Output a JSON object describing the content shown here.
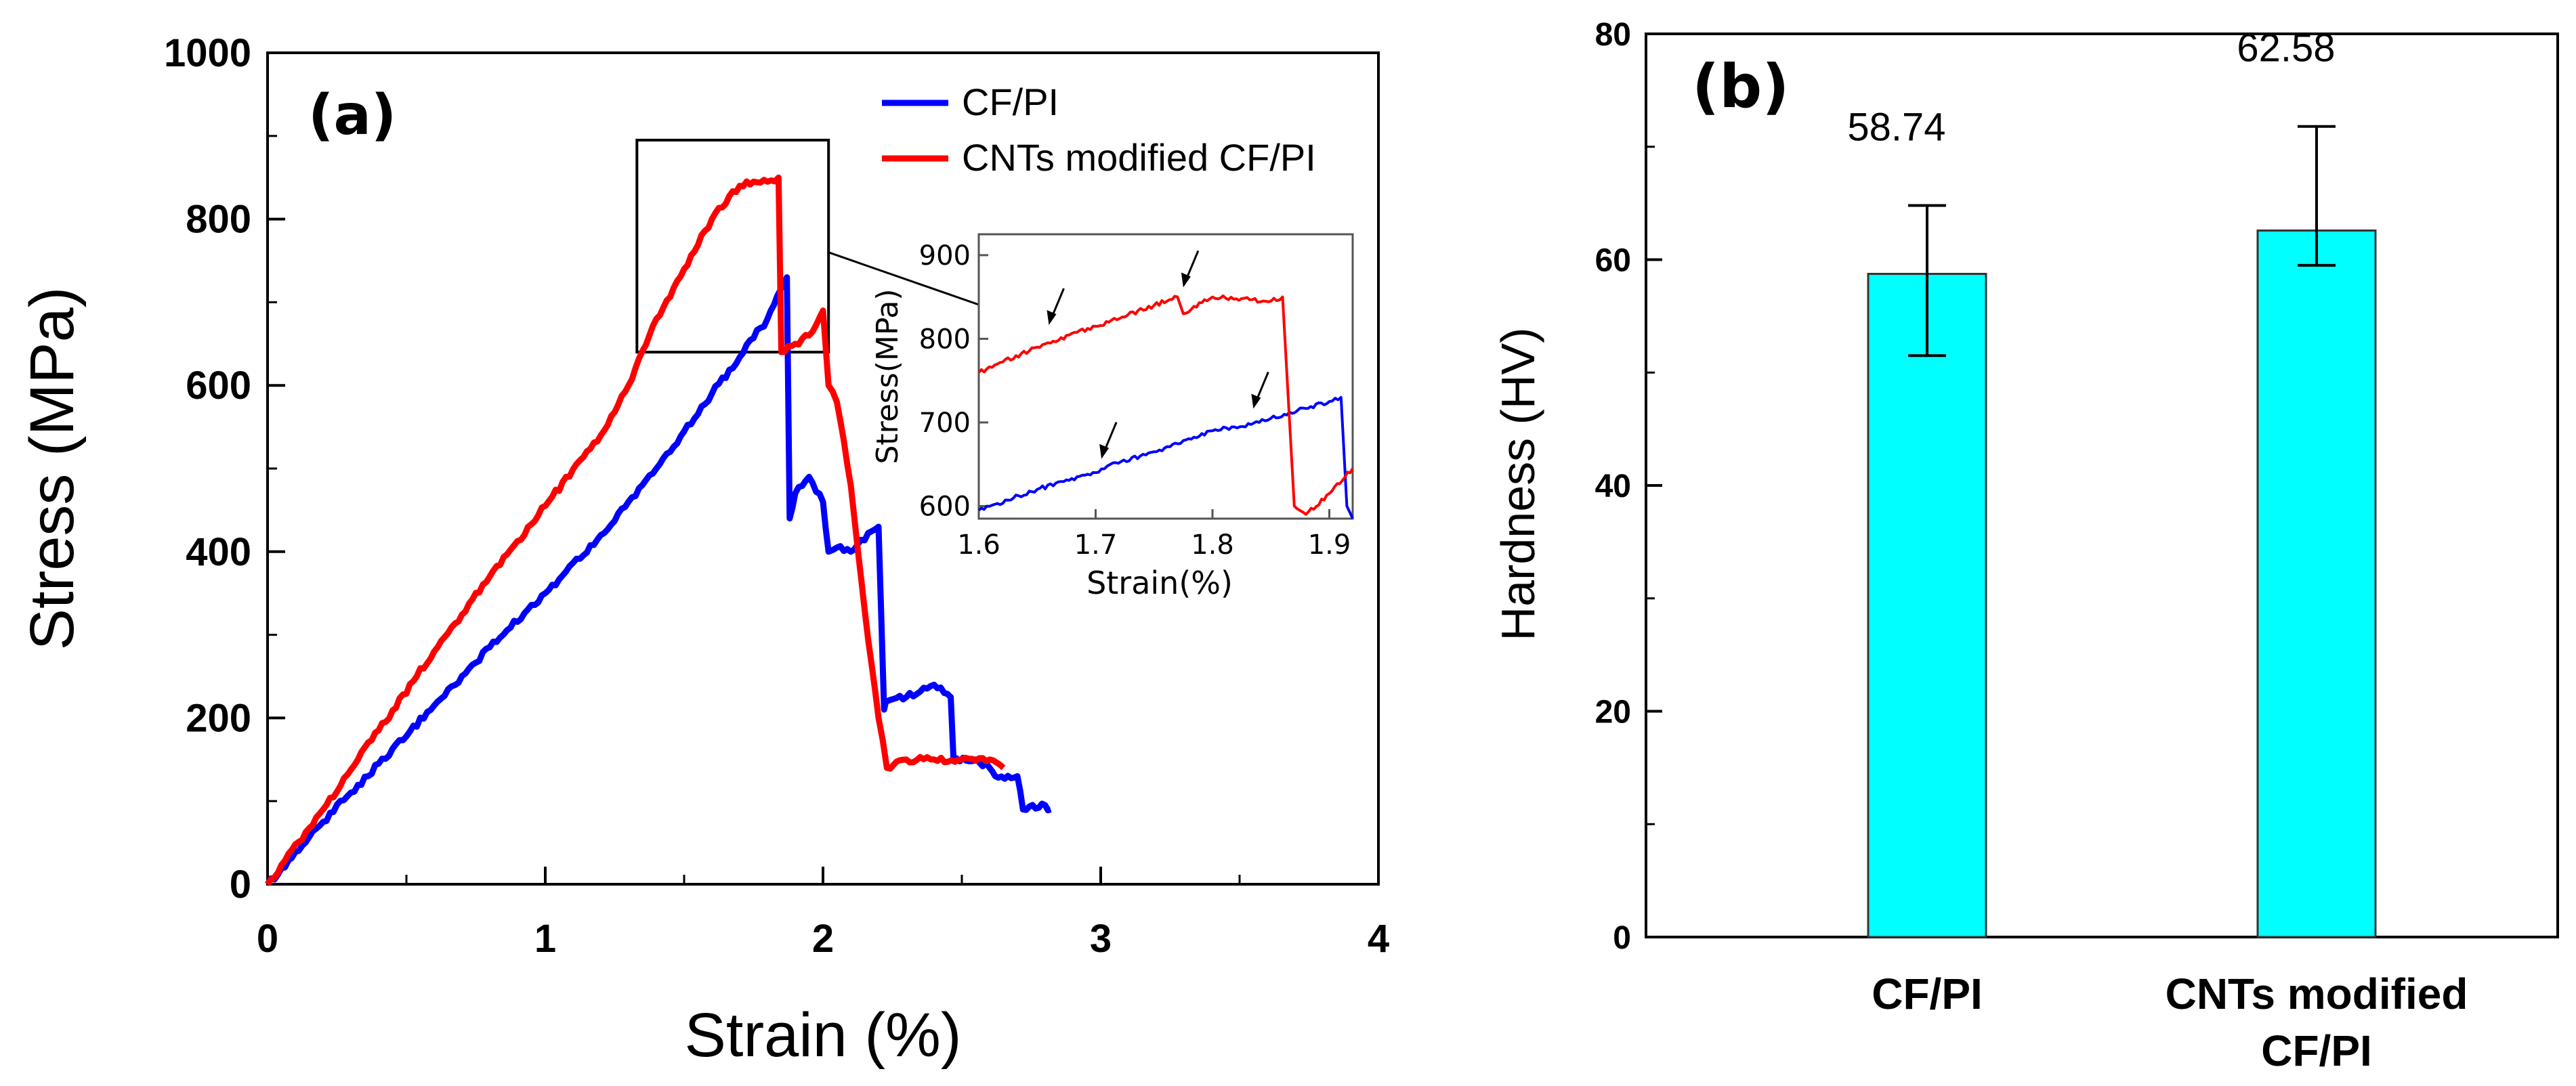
{
  "chart_data": [
    {
      "panel_label": "(a)",
      "type": "line",
      "xlabel": "Strain (%)",
      "ylabel": "Stress (MPa)",
      "xlim": [
        0,
        4
      ],
      "ylim": [
        0,
        1000
      ],
      "x_ticks": [
        "0",
        "1",
        "2",
        "3",
        "4"
      ],
      "y_ticks": [
        "0",
        "200",
        "400",
        "600",
        "800",
        "1000"
      ],
      "legend_position": "top-right",
      "series": [
        {
          "name": "CF/PI",
          "color": "#0000ff",
          "x": [
            0,
            0.2,
            0.4,
            0.6,
            0.8,
            1.0,
            1.2,
            1.4,
            1.6,
            1.8,
            1.87,
            1.88,
            1.9,
            1.95,
            2.0,
            2.02,
            2.05,
            2.1,
            2.2,
            2.22,
            2.23,
            2.3,
            2.4,
            2.46,
            2.47,
            2.55,
            2.6,
            2.62,
            2.7,
            2.72,
            2.8,
            2.82
          ],
          "y": [
            0,
            75,
            145,
            215,
            285,
            350,
            420,
            500,
            590,
            680,
            730,
            440,
            470,
            490,
            460,
            400,
            405,
            400,
            430,
            210,
            220,
            225,
            240,
            225,
            150,
            150,
            140,
            130,
            130,
            90,
            95,
            90
          ]
        },
        {
          "name": "CNTs modified CF/PI",
          "color": "#ff0000",
          "x": [
            0,
            0.2,
            0.4,
            0.6,
            0.8,
            1.0,
            1.2,
            1.3,
            1.4,
            1.5,
            1.6,
            1.7,
            1.75,
            1.8,
            1.84,
            1.85,
            1.9,
            1.95,
            2.0,
            2.02,
            2.05,
            2.1,
            2.15,
            2.2,
            2.23,
            2.3,
            2.4,
            2.5,
            2.6,
            2.65
          ],
          "y": [
            0,
            90,
            185,
            280,
            370,
            455,
            540,
            600,
            680,
            740,
            800,
            840,
            845,
            845,
            850,
            640,
            650,
            660,
            690,
            600,
            580,
            480,
            330,
            200,
            140,
            150,
            150,
            150,
            150,
            140
          ]
        }
      ],
      "zoom_box": {
        "x": [
          1.33,
          2.02
        ],
        "y": [
          640,
          895
        ]
      },
      "inset": {
        "xlabel": "Strain(%)",
        "ylabel": "Stress(MPa)",
        "xlim": [
          1.6,
          1.92
        ],
        "ylim": [
          585,
          925
        ],
        "x_ticks": [
          "1.6",
          "1.7",
          "1.8",
          "1.9"
        ],
        "y_ticks": [
          "600",
          "700",
          "800",
          "900"
        ],
        "series": [
          {
            "color": "#0000ff",
            "x": [
              1.6,
              1.65,
              1.7,
              1.71,
              1.75,
              1.8,
              1.84,
              1.85,
              1.9,
              1.91,
              1.915,
              1.92
            ],
            "y": [
              595,
              620,
              640,
              648,
              665,
              690,
              700,
              705,
              725,
              730,
              600,
              585
            ]
          },
          {
            "color": "#ff0000",
            "x": [
              1.6,
              1.65,
              1.7,
              1.75,
              1.77,
              1.775,
              1.8,
              1.85,
              1.86,
              1.87,
              1.88,
              1.9,
              1.92
            ],
            "y": [
              760,
              790,
              815,
              840,
              850,
              830,
              850,
              845,
              850,
              600,
              590,
              615,
              645
            ]
          }
        ],
        "arrows": [
          {
            "x": 1.66,
            "y": 810
          },
          {
            "x": 1.775,
            "y": 855
          },
          {
            "x": 1.705,
            "y": 650
          },
          {
            "x": 1.835,
            "y": 710
          }
        ]
      }
    },
    {
      "panel_label": "(b)",
      "type": "bar",
      "xlabel": "",
      "ylabel": "Hardness (HV)",
      "ylim": [
        0,
        80
      ],
      "y_ticks": [
        "0",
        "20",
        "40",
        "60",
        "80"
      ],
      "categories": [
        [
          "CF/PI"
        ],
        [
          "CNTs modified",
          "CF/PI"
        ]
      ],
      "values": [
        58.74,
        62.58
      ],
      "value_labels": [
        "58.74",
        "62.58"
      ],
      "error_low": [
        51.5,
        59.5
      ],
      "error_high": [
        64.8,
        71.8
      ],
      "bar_color": "#00ffff"
    }
  ]
}
